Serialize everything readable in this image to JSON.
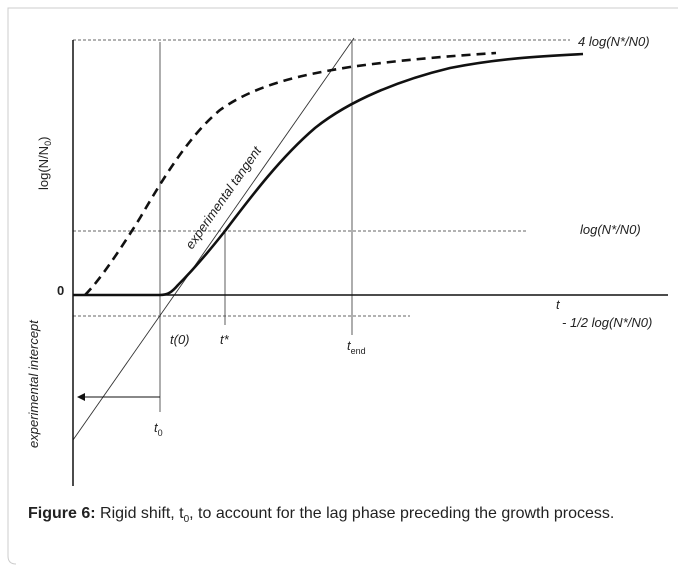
{
  "figure": {
    "y_axis_label": {
      "base": "log(N/N",
      "sub": "0",
      "tail": ")"
    },
    "origin_label": "0",
    "x_axis_label": "t",
    "level_labels": {
      "top": "4 log(N*/N0)",
      "middle": "log(N*/N0)",
      "bottom": "- 1/2 log(N*/N0)"
    },
    "time_labels": {
      "t_zero_paren": "t(0)",
      "t_star": "t*",
      "t_end": {
        "base": "t",
        "sub": "end"
      },
      "t_0": {
        "base": "t",
        "sub": "0"
      }
    },
    "tangent_label": "experimental tangent",
    "intercept_label": "experimental intercept"
  },
  "caption": {
    "label": "Figure 6:",
    "text_before": " Rigid shift, t",
    "sub": "0",
    "text_after": ", to account for the lag phase preceding the growth process."
  }
}
